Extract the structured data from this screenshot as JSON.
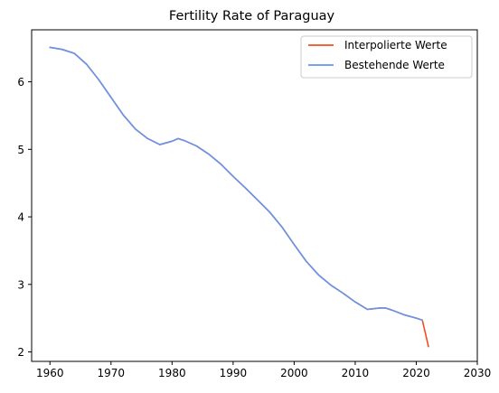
{
  "chart_data": {
    "type": "line",
    "title": "Fertility Rate of Paraguay",
    "xlabel": "",
    "ylabel": "",
    "xlim": [
      1957,
      2030
    ],
    "ylim": [
      1.86,
      6.77
    ],
    "x_ticks": [
      1960,
      1970,
      1980,
      1990,
      2000,
      2010,
      2020,
      2030
    ],
    "y_ticks": [
      2,
      3,
      4,
      5,
      6
    ],
    "grid": false,
    "legend_position": "top-right",
    "series": [
      {
        "name": "Interpolierte Werte",
        "color": "#f0501e",
        "x": [
          1960,
          1962,
          1964,
          1966,
          1968,
          1970,
          1972,
          1974,
          1976,
          1978,
          1980,
          1981,
          1982,
          1984,
          1986,
          1988,
          1990,
          1992,
          1994,
          1996,
          1998,
          2000,
          2002,
          2004,
          2006,
          2008,
          2010,
          2012,
          2014,
          2015,
          2016,
          2018,
          2020,
          2021,
          2022
        ],
        "y": [
          6.51,
          6.48,
          6.42,
          6.26,
          6.03,
          5.77,
          5.51,
          5.3,
          5.16,
          5.07,
          5.12,
          5.16,
          5.13,
          5.05,
          4.93,
          4.78,
          4.6,
          4.43,
          4.25,
          4.07,
          3.85,
          3.59,
          3.34,
          3.14,
          2.99,
          2.87,
          2.74,
          2.63,
          2.65,
          2.65,
          2.62,
          2.55,
          2.5,
          2.47,
          2.08
        ]
      },
      {
        "name": "Bestehende Werte",
        "color": "#6495ed",
        "x": [
          1960,
          1962,
          1964,
          1966,
          1968,
          1970,
          1972,
          1974,
          1976,
          1978,
          1980,
          1981,
          1982,
          1984,
          1986,
          1988,
          1990,
          1992,
          1994,
          1996,
          1998,
          2000,
          2002,
          2004,
          2006,
          2008,
          2010,
          2012,
          2014,
          2015,
          2016,
          2018,
          2020,
          2021
        ],
        "y": [
          6.51,
          6.48,
          6.42,
          6.26,
          6.03,
          5.77,
          5.51,
          5.3,
          5.16,
          5.07,
          5.12,
          5.16,
          5.13,
          5.05,
          4.93,
          4.78,
          4.6,
          4.43,
          4.25,
          4.07,
          3.85,
          3.59,
          3.34,
          3.14,
          2.99,
          2.87,
          2.74,
          2.63,
          2.65,
          2.65,
          2.62,
          2.55,
          2.5,
          2.47
        ]
      }
    ]
  }
}
